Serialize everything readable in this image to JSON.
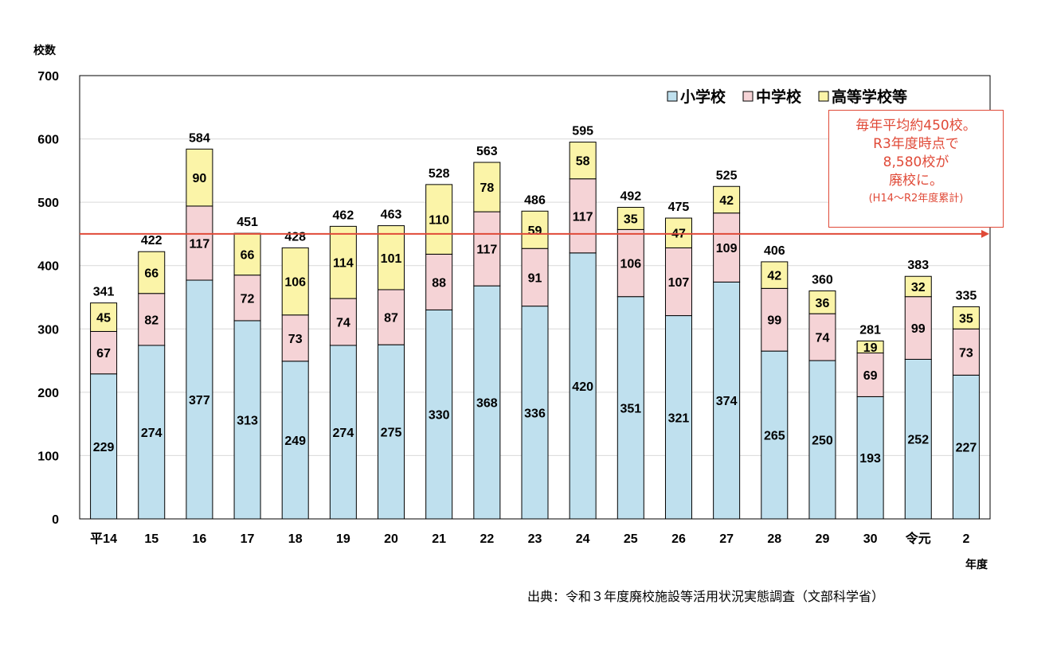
{
  "chart_data": {
    "type": "bar",
    "stacked": true,
    "categories": [
      "平14",
      "15",
      "16",
      "17",
      "18",
      "19",
      "20",
      "21",
      "22",
      "23",
      "24",
      "25",
      "26",
      "27",
      "28",
      "29",
      "30",
      "令元",
      "2"
    ],
    "series": [
      {
        "name": "小学校",
        "color": "#bfe0ee",
        "values": [
          229,
          274,
          377,
          313,
          249,
          274,
          275,
          330,
          368,
          336,
          420,
          351,
          321,
          374,
          265,
          250,
          193,
          252,
          227
        ]
      },
      {
        "name": "中学校",
        "color": "#f5d3d6",
        "values": [
          67,
          82,
          117,
          72,
          73,
          74,
          87,
          88,
          117,
          91,
          117,
          106,
          107,
          109,
          99,
          74,
          69,
          99,
          73
        ]
      },
      {
        "name": "高等学校等",
        "color": "#fbf4a8",
        "values": [
          45,
          66,
          90,
          66,
          106,
          114,
          101,
          110,
          78,
          59,
          58,
          35,
          47,
          42,
          42,
          36,
          19,
          32,
          35
        ]
      }
    ],
    "totals": [
      341,
      422,
      584,
      451,
      428,
      462,
      463,
      528,
      563,
      486,
      595,
      492,
      475,
      525,
      406,
      360,
      281,
      383,
      335
    ],
    "ylabel": "校数",
    "xlabel": "年度",
    "ylim": [
      0,
      700
    ],
    "yticks": [
      "0",
      "100",
      "200",
      "300",
      "400",
      "500",
      "600",
      "700"
    ],
    "reference_line": {
      "value": 450,
      "color": "#e04a38"
    },
    "grid": true,
    "legend": "top-right"
  },
  "annotation": {
    "lines": [
      "毎年平均約450校。",
      "R3年度時点で",
      "8,580校が",
      "廃校に。"
    ],
    "note": "(H14～R2年度累計)",
    "color": "#e04a38"
  },
  "source": "出典：令和３年度廃校施設等活用状況実態調査（文部科学省）"
}
